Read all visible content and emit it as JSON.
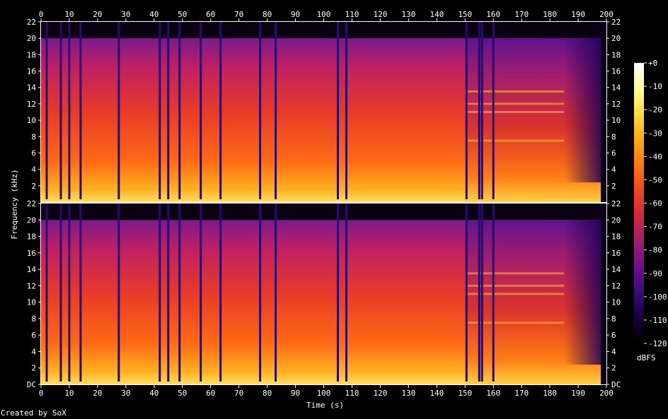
{
  "chart_data": {
    "type": "heatmap",
    "subtype": "spectrogram",
    "channels": 2,
    "xlabel": "Time (s)",
    "ylabel": "Frequency (kHz)",
    "xlim": [
      0,
      200
    ],
    "ylim": [
      0,
      22
    ],
    "x_ticks": [
      0,
      10,
      20,
      30,
      40,
      50,
      60,
      70,
      80,
      90,
      100,
      110,
      120,
      130,
      140,
      150,
      160,
      170,
      180,
      190,
      200
    ],
    "y_ticks": [
      "DC",
      "2",
      "4",
      "6",
      "8",
      "10",
      "12",
      "14",
      "16",
      "18",
      "20",
      "22"
    ],
    "y_top_tick_in_lower_gap": "22",
    "colorbar": {
      "label": "dBFS",
      "ticks": [
        "+0",
        "-10",
        "-20",
        "-30",
        "-40",
        "-50",
        "-60",
        "-70",
        "-80",
        "-90",
        "-100",
        "-110",
        "-120"
      ],
      "range": [
        -120,
        0
      ],
      "palette": [
        "#000000",
        "#14003c",
        "#3c0a78",
        "#6e0f8c",
        "#a01e6e",
        "#d2283c",
        "#f0461e",
        "#ff7814",
        "#ffaa14",
        "#ffdc3c",
        "#ffff96",
        "#ffffff"
      ]
    },
    "content_cutoff_khz": 20,
    "audio_end_s": 198,
    "dropouts_s": [
      2,
      7,
      10,
      14,
      27.5,
      42,
      45,
      49,
      56.5,
      63.5,
      77.5,
      83,
      105,
      108,
      150.5,
      155,
      156,
      160
    ],
    "notes_from_image": {
      "high_freq_rolloff_after_s": 185,
      "tonal_bands_after_s_150_khz": [
        7.5,
        11,
        12,
        13.5
      ]
    },
    "footer": "Created by SoX"
  }
}
